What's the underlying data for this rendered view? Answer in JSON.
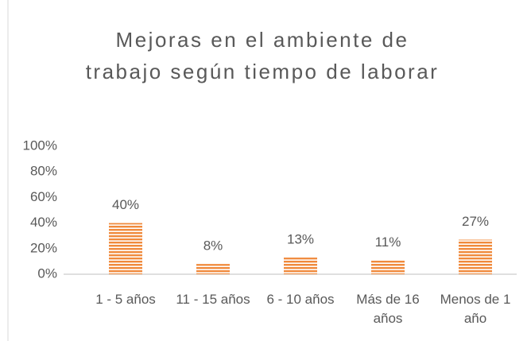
{
  "chart_data": {
    "type": "bar",
    "title": "Mejoras en el ambiente de trabajo según tiempo de laborar",
    "categories": [
      "1 - 5 años",
      "11 - 15 años",
      "6 - 10 años",
      "Más de 16 años",
      "Menos de 1 año"
    ],
    "values": [
      40,
      8,
      13,
      11,
      27
    ],
    "value_labels": [
      "40%",
      "8%",
      "13%",
      "11%",
      "27%"
    ],
    "color": "#f08a3c",
    "ylim": [
      0,
      100
    ],
    "yticks": [
      {
        "value": 0,
        "label": "0%"
      },
      {
        "value": 20,
        "label": "20%"
      },
      {
        "value": 40,
        "label": "40%"
      },
      {
        "value": 60,
        "label": "60%"
      },
      {
        "value": 80,
        "label": "80%"
      },
      {
        "value": 100,
        "label": "100%"
      }
    ],
    "grid": false
  }
}
